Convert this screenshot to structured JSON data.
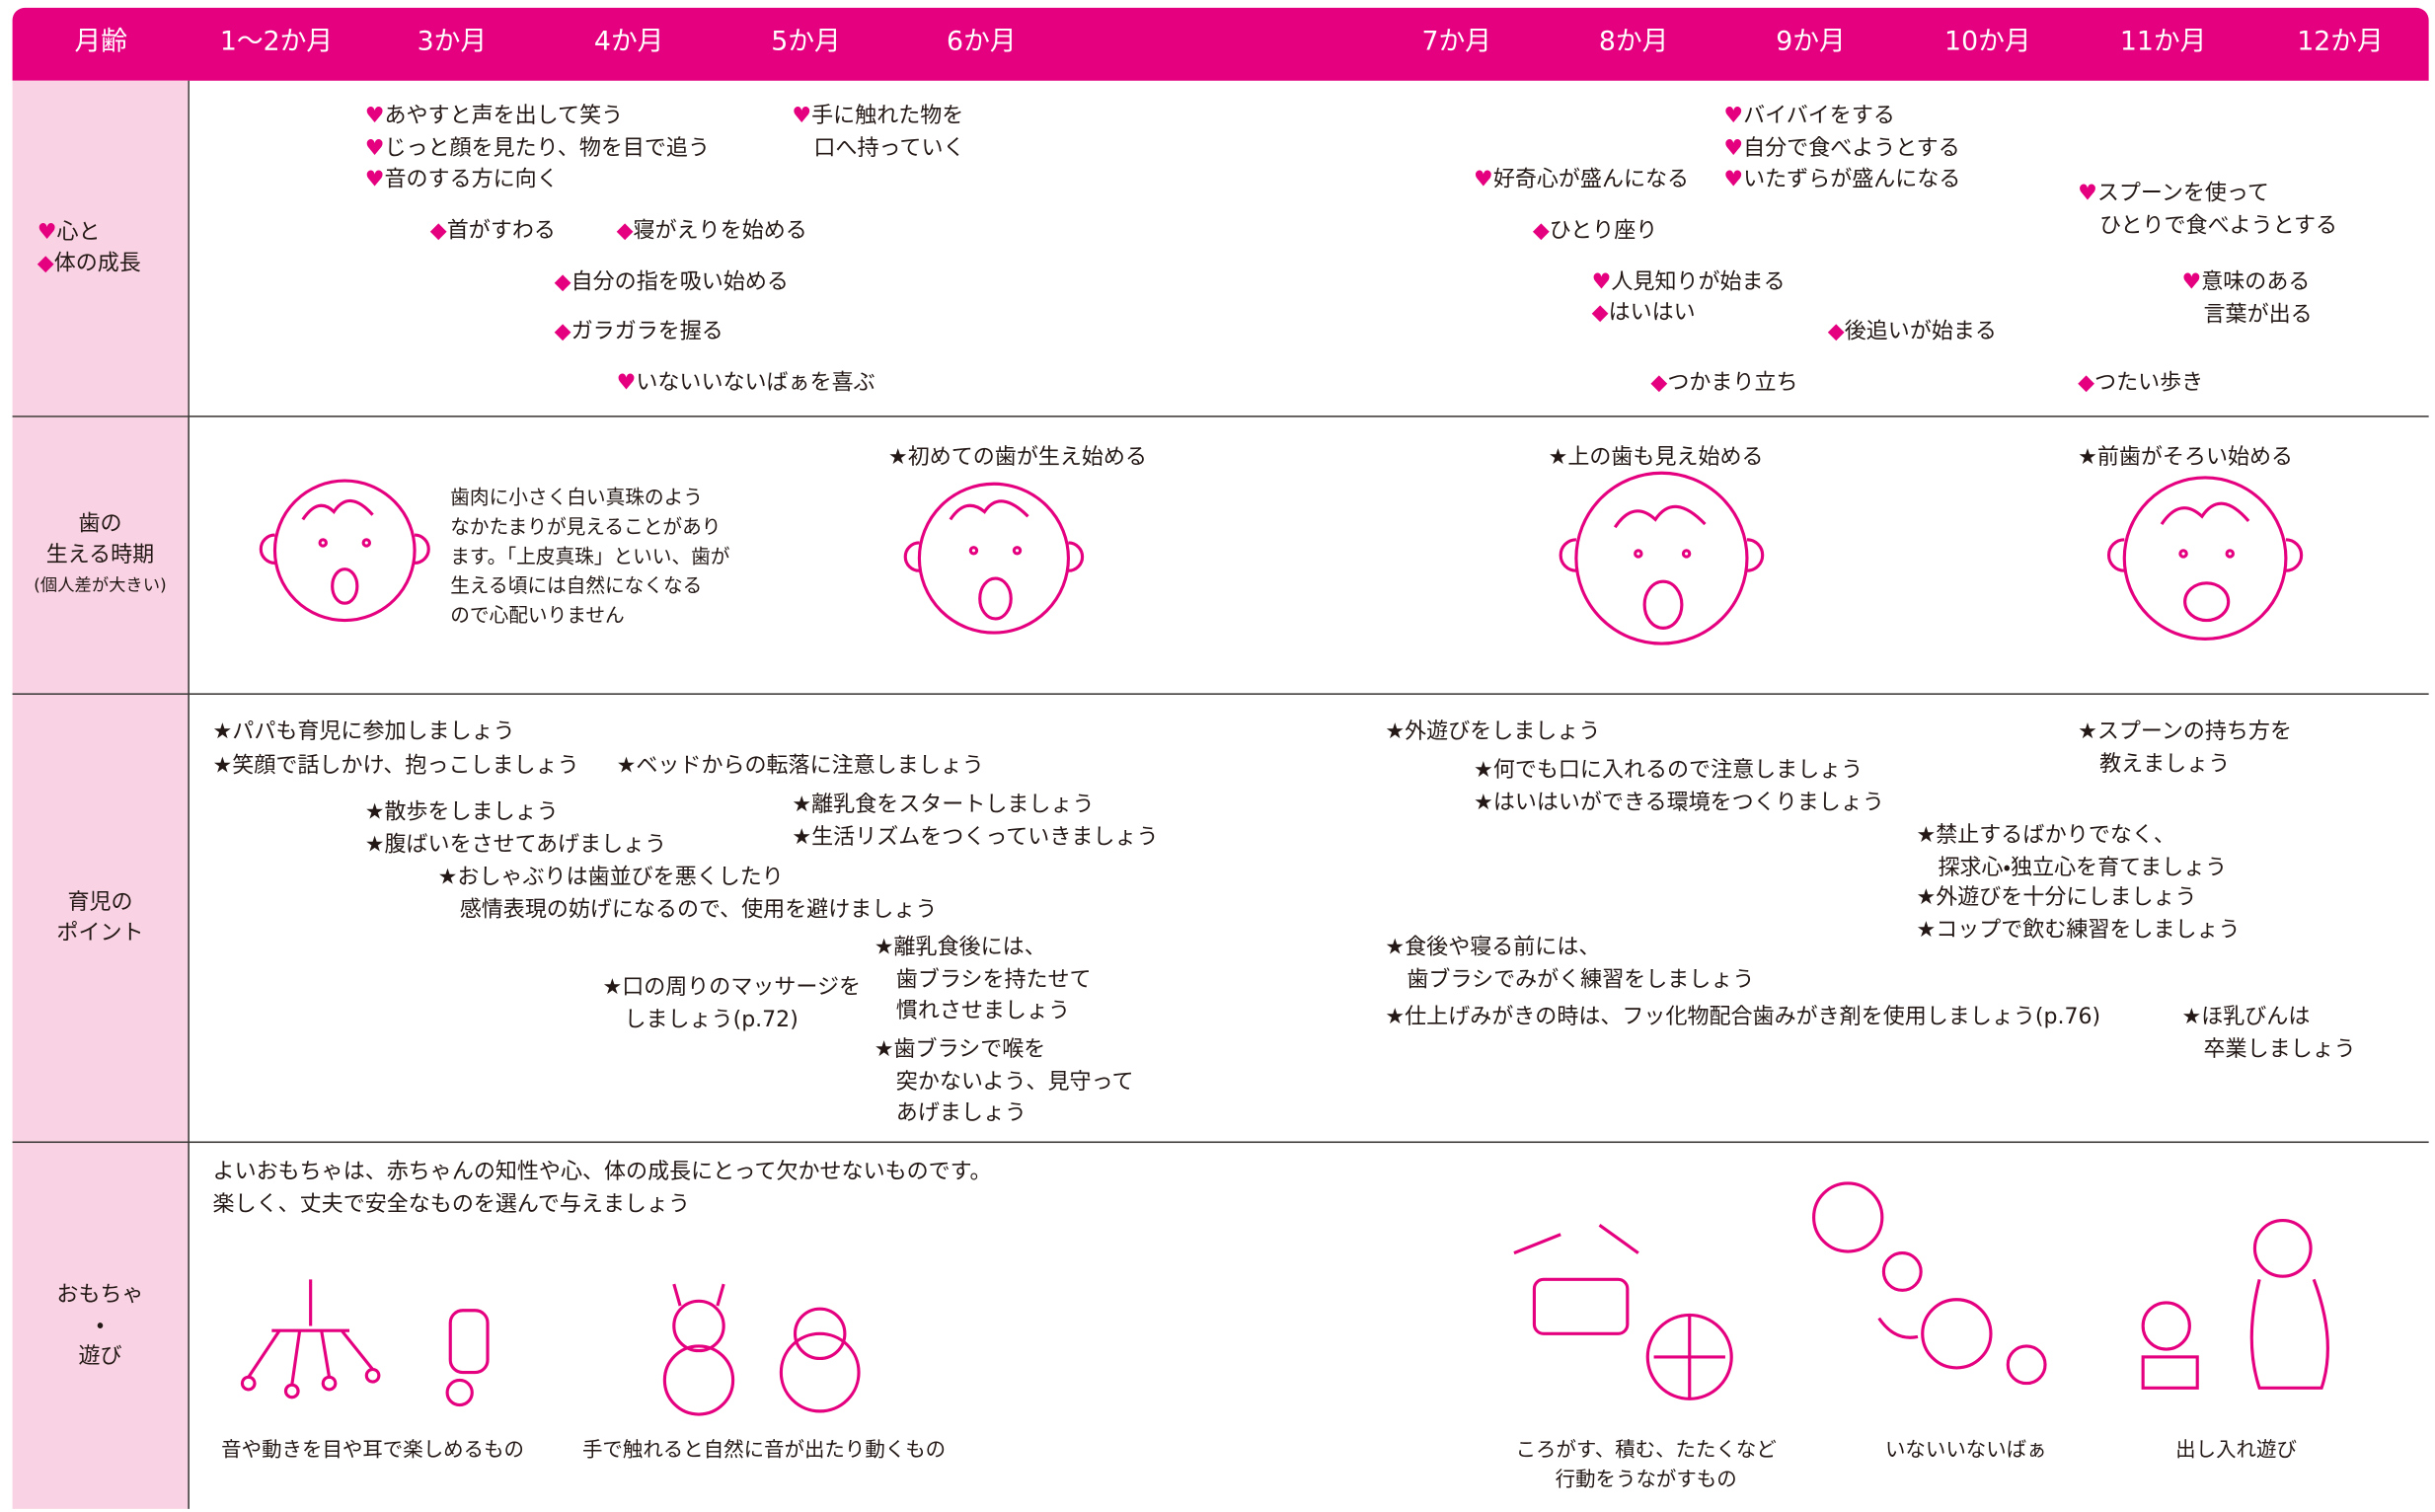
{
  "header": {
    "label": "月齢",
    "months": [
      "1〜2か月",
      "3か月",
      "4か月",
      "5か月",
      "6か月",
      "7か月",
      "8か月",
      "9か月",
      "10か月",
      "11か月",
      "12か月"
    ]
  },
  "rows": [
    {
      "label_items": [
        {
          "mark": "♥",
          "text": "心と"
        },
        {
          "mark": "◆",
          "text": "体の成長"
        }
      ],
      "items": [
        {
          "mark": "♥",
          "text": "あやすと声を出して笑う"
        },
        {
          "mark": "♥",
          "text": "じっと顔を見たり、物を目で追う"
        },
        {
          "mark": "♥",
          "text": "音のする方に向く"
        },
        {
          "mark": "♥",
          "text": "手に触れた物を\n口へ持っていく"
        },
        {
          "mark": "◆",
          "text": "首がすわる"
        },
        {
          "mark": "◆",
          "text": "寝がえりを始める"
        },
        {
          "mark": "◆",
          "text": "自分の指を吸い始める"
        },
        {
          "mark": "◆",
          "text": "ガラガラを握る"
        },
        {
          "mark": "♥",
          "text": "いないいないばぁを喜ぶ"
        },
        {
          "mark": "♥",
          "text": "好奇心が盛んになる"
        },
        {
          "mark": "♥",
          "text": "バイバイをする"
        },
        {
          "mark": "♥",
          "text": "自分で食べようとする"
        },
        {
          "mark": "♥",
          "text": "いたずらが盛んになる"
        },
        {
          "mark": "◆",
          "text": "ひとり座り"
        },
        {
          "mark": "♥",
          "text": "人見知りが始まる"
        },
        {
          "mark": "◆",
          "text": "はいはい"
        },
        {
          "mark": "◆",
          "text": "後追いが始まる"
        },
        {
          "mark": "◆",
          "text": "つかまり立ち"
        },
        {
          "mark": "♥",
          "text": "スプーンを使って\nひとりで食べようとする"
        },
        {
          "mark": "♥",
          "text": "意味のある\n言葉が出る"
        },
        {
          "mark": "◆",
          "text": "つたい歩き"
        }
      ]
    },
    {
      "label": "歯の\n生える時期",
      "note": "(個人差が大きい)",
      "description": "歯肉に小さく白い真珠のよう\nなかたまりが見えることがあり\nます。「上皮真珠」といい、歯が\n生える頃には自然になくなる\nので心配いりません",
      "items": [
        {
          "mark": "★",
          "text": "初めての歯が生え始める"
        },
        {
          "mark": "★",
          "text": "上の歯も見え始める"
        },
        {
          "mark": "★",
          "text": "前歯がそろい始める"
        }
      ]
    },
    {
      "label": "育児の\nポイント",
      "items": [
        {
          "mark": "★",
          "text": "パパも育児に参加しましょう"
        },
        {
          "mark": "★",
          "text": "笑顔で話しかけ、抱っこしましょう"
        },
        {
          "mark": "★",
          "text": "ベッドからの転落に注意しましょう"
        },
        {
          "mark": "★",
          "text": "散歩をしましょう"
        },
        {
          "mark": "★",
          "text": "腹ばいをさせてあげましょう"
        },
        {
          "mark": "★",
          "text": "離乳食をスタートしましょう"
        },
        {
          "mark": "★",
          "text": "生活リズムをつくっていきましょう"
        },
        {
          "mark": "★",
          "text": "おしゃぶりは歯並びを悪くしたり\n感情表現の妨げになるので、使用を避けましょう"
        },
        {
          "mark": "★",
          "text": "離乳食後には、\n歯ブラシを持たせて\n慣れさせましょう"
        },
        {
          "mark": "★",
          "text": "口の周りのマッサージを\nしましょう(p.72)"
        },
        {
          "mark": "★",
          "text": "歯ブラシで喉を\n突かないよう、見守って\nあげましょう"
        },
        {
          "mark": "★",
          "text": "外遊びをしましょう"
        },
        {
          "mark": "★",
          "text": "何でも口に入れるので注意しましょう"
        },
        {
          "mark": "★",
          "text": "はいはいができる環境をつくりましょう"
        },
        {
          "mark": "★",
          "text": "スプーンの持ち方を\n教えましょう"
        },
        {
          "mark": "★",
          "text": "禁止するばかりでなく、\n探求心・独立心を育てましょう"
        },
        {
          "mark": "★",
          "text": "外遊びを十分にしましょう"
        },
        {
          "mark": "★",
          "text": "コップで飲む練習をしましょう"
        },
        {
          "mark": "★",
          "text": "食後や寝る前には、\n歯ブラシでみがく練習をしましょう"
        },
        {
          "mark": "★",
          "text": "仕上げみがきの時は、フッ化物配合歯みがき剤を使用しましょう(p.76)"
        },
        {
          "mark": "★",
          "text": "ほ乳びんは\n卒業しましょう"
        }
      ]
    },
    {
      "label": "おもちゃ\n・\n遊び",
      "description": "よいおもちゃは、赤ちゃんの知性や心、体の成長にとって欠かせないものです。\n楽しく、丈夫で安全なものを選んで与えましょう",
      "captions": [
        "音や動きを目や耳で楽しめるもの",
        "手で触れると自然に音が出たり動くもの",
        "ころがす、積む、たたくなど\n行動をうながすもの",
        "いないいないばぁ",
        "出し入れ遊び"
      ]
    }
  ]
}
